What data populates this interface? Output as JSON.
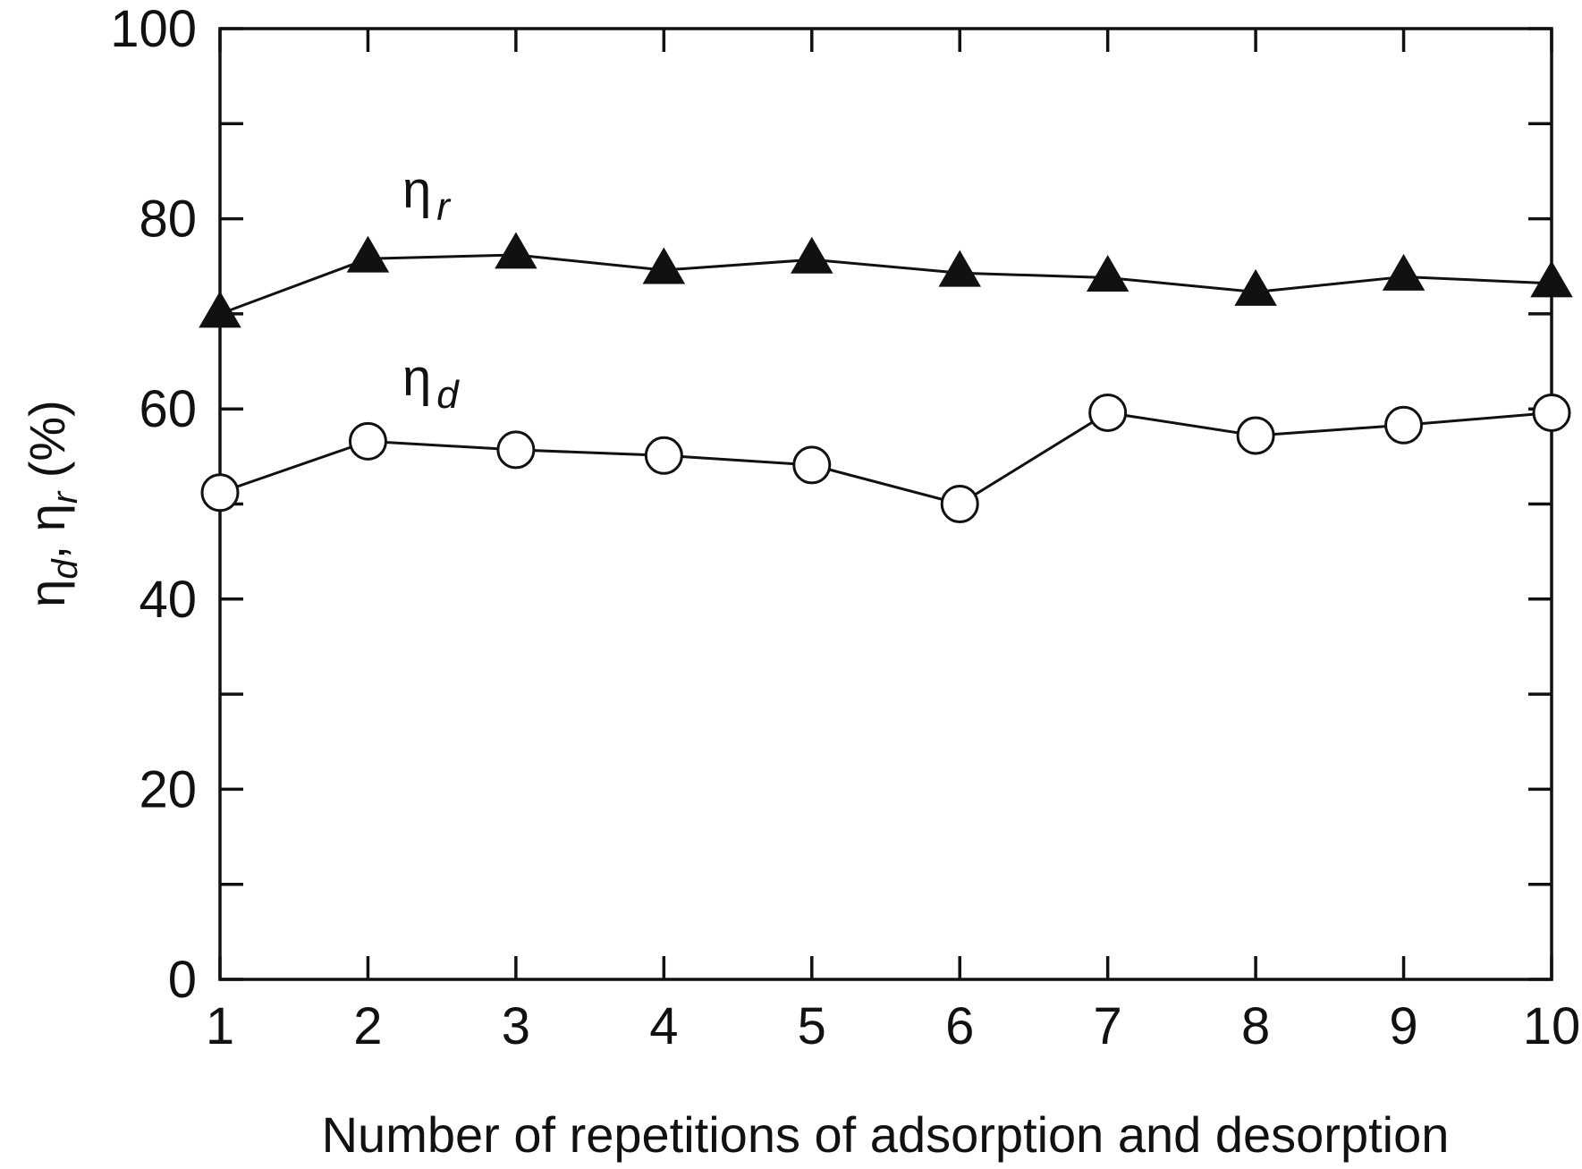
{
  "chart_data": {
    "type": "line",
    "title": "",
    "xlabel": "Number of repetitions of adsorption and desorption",
    "ylabel_parts": [
      "η",
      "d",
      ", η",
      "r",
      " (%)"
    ],
    "x": [
      1,
      2,
      3,
      4,
      5,
      6,
      7,
      8,
      9,
      10
    ],
    "xlim": [
      1,
      10
    ],
    "ylim": [
      0,
      100
    ],
    "y_major_ticks": [
      0,
      20,
      40,
      60,
      80,
      100
    ],
    "y_minor_step": 10,
    "grid": false,
    "legend": "inline labels",
    "series": [
      {
        "label_parts": [
          "η",
          "r"
        ],
        "marker": "filled-triangle",
        "color": "#111111",
        "values": [
          70,
          75.8,
          76.2,
          74.6,
          75.7,
          74.3,
          73.8,
          72.3,
          73.9,
          73.2
        ]
      },
      {
        "label_parts": [
          "η",
          "d"
        ],
        "marker": "open-circle",
        "color": "#111111",
        "values": [
          51.2,
          56.6,
          55.7,
          55.1,
          54.1,
          50.0,
          59.6,
          57.2,
          58.3,
          59.6
        ]
      }
    ]
  }
}
